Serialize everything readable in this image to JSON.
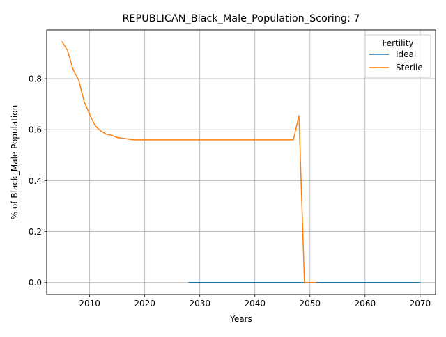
{
  "chart_data": {
    "type": "line",
    "title": "REPUBLICAN_Black_Male_Population_Scoring: 7",
    "xlabel": "Years",
    "ylabel": "% of Black_Male Population",
    "xlim": [
      2002.2,
      2072.8
    ],
    "ylim": [
      -0.0472,
      0.9914
    ],
    "xticks": [
      2010,
      2020,
      2030,
      2040,
      2050,
      2060,
      2070
    ],
    "xtick_labels": [
      "2010",
      "2020",
      "2030",
      "2040",
      "2050",
      "2060",
      "2070"
    ],
    "yticks": [
      0.0,
      0.2,
      0.4,
      0.6,
      0.8
    ],
    "ytick_labels": [
      "0.0",
      "0.2",
      "0.4",
      "0.6",
      "0.8"
    ],
    "grid": true,
    "legend": {
      "title": "Fertility",
      "position": "top-right"
    },
    "series": [
      {
        "name": "Ideal",
        "color": "#1f77b4",
        "x": [
          2028,
          2070
        ],
        "y": [
          0.0,
          0.0
        ]
      },
      {
        "name": "Sterile",
        "color": "#ff7f0e",
        "x": [
          2005,
          2006,
          2007,
          2008,
          2009,
          2010,
          2011,
          2012,
          2013,
          2014,
          2015,
          2016,
          2017,
          2018,
          2019,
          2020,
          2025,
          2030,
          2035,
          2040,
          2045,
          2046,
          2047,
          2048,
          2049,
          2050,
          2051
        ],
        "y": [
          0.945,
          0.91,
          0.835,
          0.795,
          0.71,
          0.66,
          0.615,
          0.595,
          0.582,
          0.578,
          0.569,
          0.566,
          0.563,
          0.56,
          0.56,
          0.56,
          0.56,
          0.56,
          0.56,
          0.56,
          0.56,
          0.56,
          0.56,
          0.655,
          0.0,
          0.0,
          0.0
        ]
      }
    ]
  }
}
